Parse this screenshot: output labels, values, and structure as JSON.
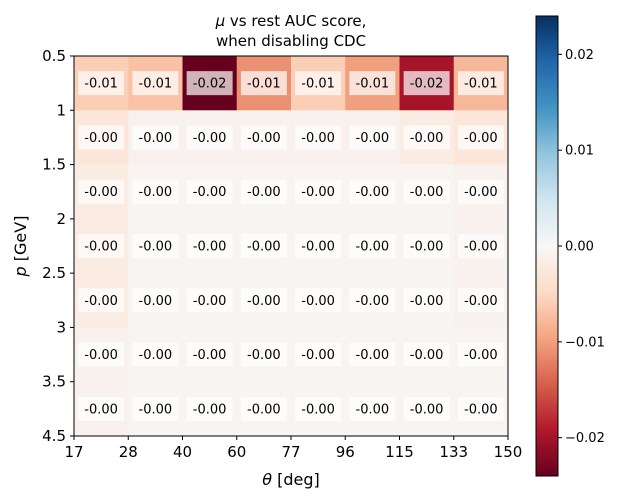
{
  "chart_data": {
    "type": "heatmap",
    "title_lines": [
      {
        "italic": "μ",
        "rest": " vs rest AUC score,"
      },
      {
        "italic": "",
        "rest": "when disabling CDC"
      }
    ],
    "xlabel": {
      "italic": "θ",
      "rest": " [deg]"
    },
    "ylabel": {
      "italic": "p",
      "rest": " [GeV]"
    },
    "x_tick_labels": [
      "17",
      "28",
      "40",
      "60",
      "77",
      "96",
      "115",
      "133",
      "150"
    ],
    "y_tick_labels": [
      "0.5",
      "1",
      "1.5",
      "2",
      "2.5",
      "3",
      "3.5",
      "4.5"
    ],
    "colorbar": {
      "colormap": "RdBu",
      "range": [
        -0.024,
        0.024
      ],
      "tick_values": [
        -0.02,
        -0.01,
        0.0,
        0.01,
        0.02
      ],
      "tick_labels": [
        "−0.02",
        "−0.01",
        "0.00",
        "0.01",
        "0.02"
      ]
    },
    "values": [
      [
        -0.006,
        -0.007,
        -0.024,
        -0.011,
        -0.006,
        -0.01,
        -0.02,
        -0.008
      ],
      [
        -0.003,
        -0.001,
        -0.001,
        -0.001,
        -0.001,
        -0.001,
        -0.002,
        -0.003
      ],
      [
        -0.002,
        -0.0005,
        -0.0005,
        -0.0005,
        -0.0005,
        -0.0005,
        -0.0005,
        -0.001
      ],
      [
        -0.002,
        -0.0005,
        -0.0005,
        -0.0005,
        -0.0005,
        -0.0005,
        -0.0005,
        -0.001
      ],
      [
        -0.002,
        -0.0005,
        -0.0005,
        -0.0005,
        -0.0005,
        -0.0005,
        -0.0005,
        -0.001
      ],
      [
        -0.001,
        -0.0005,
        -0.0005,
        -0.0005,
        -0.0005,
        -0.0005,
        -0.0005,
        -0.0005
      ],
      [
        -0.001,
        -0.0005,
        -0.0005,
        -0.0005,
        -0.0005,
        -0.0005,
        -0.0005,
        -0.0005
      ]
    ],
    "cell_labels": [
      [
        "-0.01",
        "-0.01",
        "-0.02",
        "-0.01",
        "-0.01",
        "-0.01",
        "-0.02",
        "-0.01"
      ],
      [
        "-0.00",
        "-0.00",
        "-0.00",
        "-0.00",
        "-0.00",
        "-0.00",
        "-0.00",
        "-0.00"
      ],
      [
        "-0.00",
        "-0.00",
        "-0.00",
        "-0.00",
        "-0.00",
        "-0.00",
        "-0.00",
        "-0.00"
      ],
      [
        "-0.00",
        "-0.00",
        "-0.00",
        "-0.00",
        "-0.00",
        "-0.00",
        "-0.00",
        "-0.00"
      ],
      [
        "-0.00",
        "-0.00",
        "-0.00",
        "-0.00",
        "-0.00",
        "-0.00",
        "-0.00",
        "-0.00"
      ],
      [
        "-0.00",
        "-0.00",
        "-0.00",
        "-0.00",
        "-0.00",
        "-0.00",
        "-0.00",
        "-0.00"
      ],
      [
        "-0.00",
        "-0.00",
        "-0.00",
        "-0.00",
        "-0.00",
        "-0.00",
        "-0.00",
        "-0.00"
      ]
    ]
  }
}
